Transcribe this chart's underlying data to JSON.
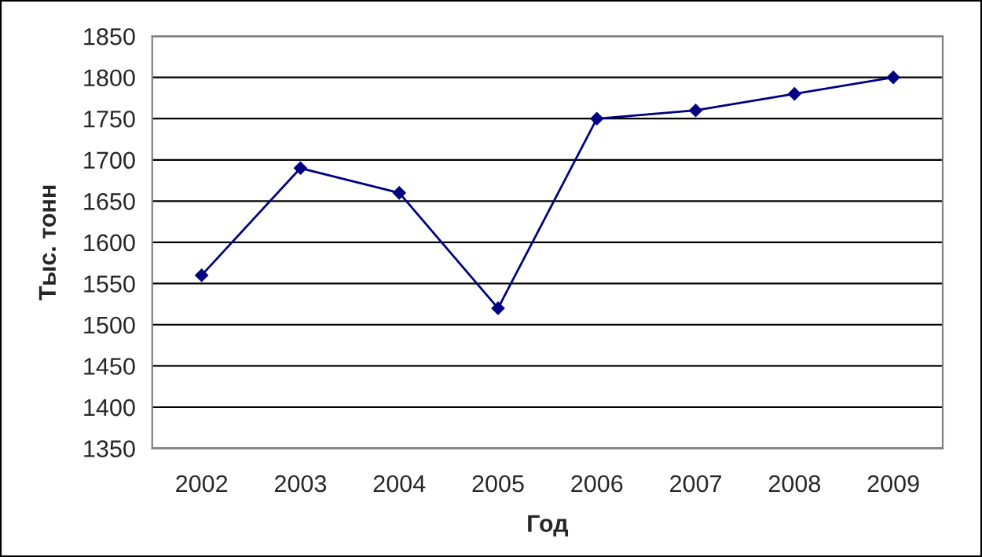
{
  "chart_data": {
    "type": "line",
    "xlabel": "Год",
    "ylabel": "Тыс. тонн",
    "categories": [
      "2002",
      "2003",
      "2004",
      "2005",
      "2006",
      "2007",
      "2008",
      "2009"
    ],
    "series": [
      {
        "color": "#000080",
        "values": [
          1560,
          1690,
          1660,
          1520,
          1750,
          1760,
          1780,
          1800
        ]
      }
    ],
    "ylim": [
      1350,
      1850
    ],
    "yticks": [
      1350,
      1400,
      1450,
      1500,
      1550,
      1600,
      1650,
      1700,
      1750,
      1800,
      1850
    ],
    "grid": "y",
    "marker": "diamond",
    "line_style": "solid",
    "legend": false
  }
}
